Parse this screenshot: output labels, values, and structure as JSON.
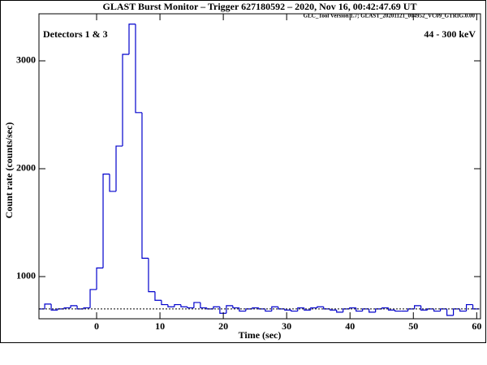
{
  "chart_data": {
    "type": "histogram",
    "title": "GLAST Burst Monitor  –  Trigger 627180592  –  2020, Nov 16, 00:42:47.69 UT",
    "subtitle": "GLC_Tool Version 1.7; GLAST_20201121_004952_VC09_GTRIG.0.00",
    "annotations": [
      "Detectors 1 & 3",
      "44 - 300 keV"
    ],
    "x_label": "Time (sec)",
    "y_label": "Count rate (counts/sec)",
    "color": "#0000cc",
    "bins": [
      -9.216,
      -8.192,
      -7.168,
      -6.144,
      -5.12,
      -4.096,
      -3.072,
      -2.048,
      -1.024,
      0,
      1.024,
      2.048,
      3.072,
      4.096,
      5.12,
      6.144,
      7.168,
      8.192,
      9.216,
      10.24,
      11.264,
      12.288,
      13.312,
      14.336,
      15.36,
      16.384,
      17.408,
      18.432,
      19.456,
      20.48,
      21.504,
      22.528,
      23.552,
      24.576,
      25.6,
      26.624,
      27.648,
      28.672,
      29.696,
      30.72,
      31.744,
      32.768,
      33.792,
      34.816,
      35.84,
      36.864,
      37.888,
      38.912,
      39.936,
      40.96,
      41.984,
      43.008,
      44.032,
      45.056,
      46.08,
      47.104,
      48.128,
      49.152,
      50.176,
      51.2,
      52.224,
      53.248,
      54.272,
      55.296,
      56.32,
      57.344,
      58.368,
      59.392,
      60.416
    ],
    "values": [
      700,
      745,
      690,
      700,
      710,
      730,
      700,
      710,
      880,
      1080,
      1950,
      1790,
      2210,
      3060,
      3340,
      2520,
      1170,
      860,
      780,
      740,
      720,
      740,
      720,
      710,
      760,
      710,
      700,
      720,
      660,
      730,
      710,
      680,
      700,
      710,
      700,
      680,
      720,
      700,
      690,
      680,
      710,
      690,
      710,
      720,
      700,
      690,
      670,
      700,
      710,
      680,
      700,
      670,
      700,
      710,
      690,
      680,
      680,
      700,
      730,
      690,
      700,
      680,
      700,
      640,
      700,
      680,
      740,
      700
    ],
    "background_level": 700,
    "xlim": [
      -9.1,
      60.6
    ],
    "xticks": [
      0,
      10,
      20,
      30,
      40,
      50,
      60
    ],
    "ylim": [
      609,
      3436
    ],
    "yticks": [
      1000,
      2000,
      3000
    ]
  }
}
